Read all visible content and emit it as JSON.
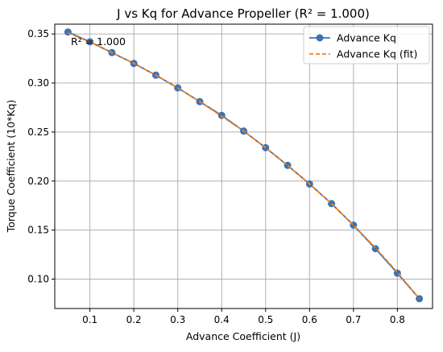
{
  "chart_data": {
    "type": "line",
    "title": "J vs Kq for Advance Propeller (R² = 1.000)",
    "xlabel": "Advance Coefficient (J)",
    "ylabel": "Torque Coefficient (10*Kq)",
    "xlim": [
      0.02,
      0.88
    ],
    "ylim": [
      0.07,
      0.36
    ],
    "grid": true,
    "legend_placement": "top-right",
    "annotation": "R² = 1.000",
    "xticks": [
      "0.1",
      "0.2",
      "0.3",
      "0.4",
      "0.5",
      "0.6",
      "0.7",
      "0.8"
    ],
    "yticks": [
      "0.10",
      "0.15",
      "0.20",
      "0.25",
      "0.30",
      "0.35"
    ],
    "x": [
      0.05,
      0.1,
      0.15,
      0.2,
      0.25,
      0.3,
      0.35,
      0.4,
      0.45,
      0.5,
      0.55,
      0.6,
      0.65,
      0.7,
      0.75,
      0.8,
      0.85
    ],
    "series": [
      {
        "name": "Advance Kq",
        "style": "line-marker",
        "color": "#3d73b1",
        "values": [
          0.352,
          0.342,
          0.331,
          0.32,
          0.308,
          0.295,
          0.281,
          0.267,
          0.251,
          0.234,
          0.216,
          0.197,
          0.177,
          0.155,
          0.131,
          0.106,
          0.08
        ]
      },
      {
        "name": "Advance Kq (fit)",
        "style": "dashed",
        "color": "#ff7f0e",
        "values": [
          0.351,
          0.342,
          0.331,
          0.32,
          0.308,
          0.295,
          0.281,
          0.266,
          0.251,
          0.234,
          0.216,
          0.197,
          0.177,
          0.155,
          0.132,
          0.107,
          0.08
        ]
      }
    ]
  }
}
